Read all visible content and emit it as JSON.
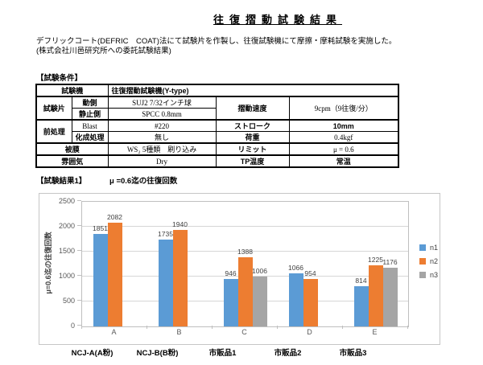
{
  "document": {
    "title": "往復摺動試験結果",
    "intro_line1": "デフリックコート(DEFRIC　COAT)法にて試験片を作製し、往復試験機にて摩擦・摩耗試験を実施した。",
    "intro_line2": "(株式会社川邑研究所への委託試験結果)",
    "conditions_heading": "【試験条件】",
    "results_heading": "【試験結果1】",
    "results_subtitle": "μ =0.6迄の往復回数"
  },
  "conditions_table": {
    "rows": [
      {
        "sep": true,
        "cells": [
          {
            "text": "試験機",
            "colspan": 2,
            "cls": "hdr"
          },
          {
            "text": "往復摺動試験機(Y-type)",
            "colspan": 3,
            "cls": "hdr left"
          }
        ]
      },
      {
        "sep": false,
        "cells": [
          {
            "text": "試験片",
            "rowspan": 2,
            "cls": "hdr bb2"
          },
          {
            "text": "動側",
            "cls": "hdr"
          },
          {
            "text": "SUJ2 7/32インチ球",
            "cls": "val"
          },
          {
            "text": "摺動速度",
            "rowspan": 2,
            "cls": "hdr bb2"
          },
          {
            "text": "9cpm（9往復/分）",
            "rowspan": 2,
            "cls": "val bb2"
          }
        ]
      },
      {
        "sep": true,
        "cells": [
          {
            "text": "静止側",
            "cls": "hdr"
          },
          {
            "text": "SPCC 0.8mm",
            "cls": "val"
          }
        ]
      },
      {
        "sep": false,
        "cells": [
          {
            "text": "前処理",
            "rowspan": 2,
            "cls": "hdr bb2"
          },
          {
            "text": "Blast",
            "cls": "val"
          },
          {
            "text": "#220",
            "cls": "val"
          },
          {
            "text": "ストローク",
            "cls": "hdr"
          },
          {
            "text": "10mm",
            "cls": "hdr"
          }
        ]
      },
      {
        "sep": true,
        "cells": [
          {
            "text": "化成処理",
            "cls": "hdr"
          },
          {
            "text": "無し",
            "cls": "val"
          },
          {
            "text": "荷重",
            "cls": "hdr"
          },
          {
            "text": "0.4kgf",
            "cls": "val"
          }
        ]
      },
      {
        "sep": true,
        "cells": [
          {
            "text": "被膜",
            "colspan": 2,
            "cls": "hdr"
          },
          {
            "text": "WS₂ 5種類　刷り込み",
            "cls": "val"
          },
          {
            "text": "リミット",
            "cls": "hdr"
          },
          {
            "text": "μ = 0.6",
            "cls": "val"
          }
        ]
      },
      {
        "sep": false,
        "cells": [
          {
            "text": "雰囲気",
            "colspan": 2,
            "cls": "hdr"
          },
          {
            "text": "Dry",
            "cls": "val"
          },
          {
            "text": "TP温度",
            "cls": "hdr"
          },
          {
            "text": "常温",
            "cls": "hdr"
          }
        ]
      }
    ]
  },
  "chart_data": {
    "type": "bar",
    "title": "",
    "categories": [
      "A",
      "B",
      "C",
      "D",
      "E"
    ],
    "category_sublabels": [
      "NCJ-A(A粉)",
      "NCJ-B(B粉)",
      "市販品1",
      "市販品2",
      "市販品3"
    ],
    "series": [
      {
        "name": "n1",
        "color": "#5B9BD5",
        "values": [
          1851,
          1735,
          946,
          1066,
          814
        ]
      },
      {
        "name": "n2",
        "color": "#ED7D31",
        "values": [
          2082,
          1940,
          1388,
          954,
          1225
        ]
      },
      {
        "name": "n3",
        "color": "#A5A5A5",
        "values": [
          null,
          null,
          1006,
          null,
          1176
        ]
      }
    ],
    "xlabel": "",
    "ylabel": "μ=0.6迄の往復回数",
    "ylim": [
      0,
      2500
    ],
    "yticks": [
      0,
      500,
      1000,
      1500,
      2000,
      2500
    ],
    "grid": true,
    "legend_position": "right"
  }
}
